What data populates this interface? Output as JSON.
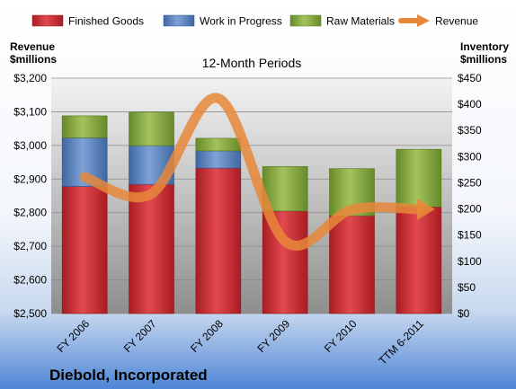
{
  "chart_data": {
    "type": "bar",
    "subtype": "stacked-bar-with-line-overlay",
    "title": "Diebold, Incorporated",
    "subtitle": "12-Month Periods",
    "categories": [
      "FY 2006",
      "FY 2007",
      "FY 2008",
      "FY 2009",
      "FY 2010",
      "TTM 6-2011"
    ],
    "series": [
      {
        "name": "Finished Goods",
        "type": "bar",
        "axis": "right",
        "values": [
          243,
          247,
          278,
          196,
          187,
          204
        ]
      },
      {
        "name": "Work in Progress",
        "type": "bar",
        "axis": "right",
        "values": [
          93,
          74,
          33,
          0,
          0,
          0
        ]
      },
      {
        "name": "Raw Materials",
        "type": "bar",
        "axis": "right",
        "values": [
          42,
          64,
          24,
          85,
          90,
          110
        ]
      },
      {
        "name": "Revenue",
        "type": "line",
        "axis": "left",
        "values": [
          2906,
          2856,
          3140,
          2715,
          2809,
          2810
        ]
      }
    ],
    "ylabel_left": "Revenue $millions",
    "ylabel_right": "Inventory $millions",
    "ylim_left": [
      2500,
      3200
    ],
    "ylim_right": [
      0,
      450
    ],
    "yticks_left": [
      "$2,500",
      "$2,600",
      "$2,700",
      "$2,800",
      "$2,900",
      "$3,000",
      "$3,100",
      "$3,200"
    ],
    "yticks_right": [
      "$0",
      "$50",
      "$100",
      "$150",
      "$200",
      "$250",
      "$300",
      "$350",
      "$400",
      "$450"
    ],
    "grid": true,
    "legend_position": "top",
    "colors": {
      "Finished Goods": "#c8262c",
      "Work in Progress": "#4f7ab8",
      "Raw Materials": "#7fa23a",
      "Revenue": "#e8873a"
    }
  },
  "header": {
    "left_axis_title_line1": "Revenue",
    "left_axis_title_line2": "$millions",
    "right_axis_title_line1": "Inventory",
    "right_axis_title_line2": "$millions"
  }
}
